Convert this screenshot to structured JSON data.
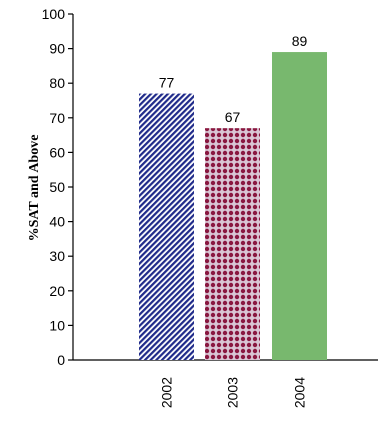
{
  "chart_data": {
    "type": "bar",
    "categories": [
      "2002",
      "2003",
      "2004"
    ],
    "values": [
      77,
      67,
      89
    ],
    "data_labels": [
      "77",
      "67",
      "89"
    ],
    "title": "",
    "xlabel": "",
    "ylabel": "%SAT and Above",
    "ylim": [
      0,
      100
    ],
    "yticks": [
      "0",
      "10",
      "20",
      "30",
      "40",
      "50",
      "60",
      "70",
      "80",
      "90",
      "100"
    ],
    "grid": false,
    "legend": "none",
    "bar_styles": [
      {
        "fill": "diagonal-stripes",
        "color": "#1f2a8a"
      },
      {
        "fill": "dots",
        "color": "#8a1840",
        "background": "#d9c6d4"
      },
      {
        "fill": "solid",
        "color": "#78b86e"
      }
    ]
  }
}
